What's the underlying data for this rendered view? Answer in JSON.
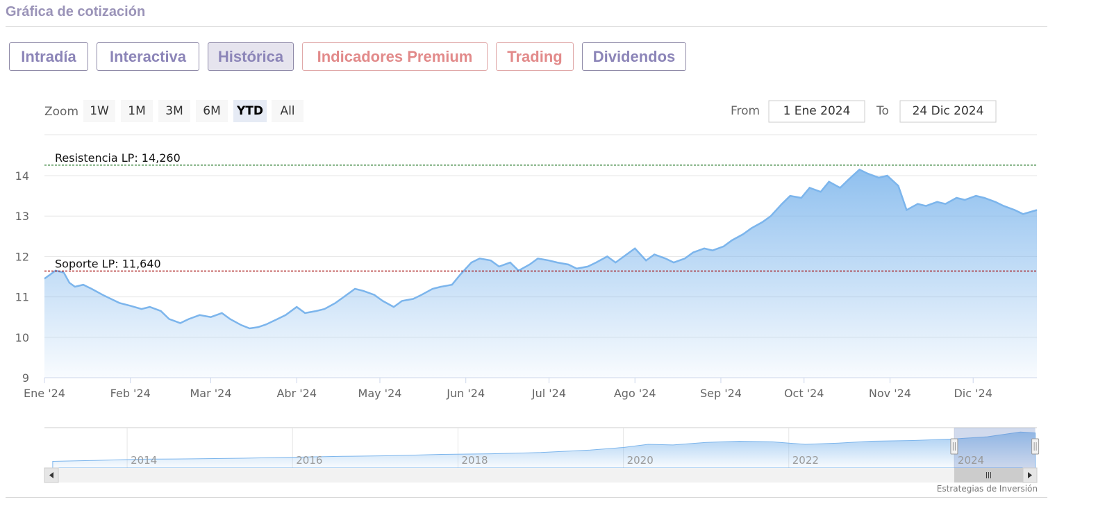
{
  "page_title": "Gráfica de cotización",
  "tabs": [
    {
      "label": "Intradía",
      "state": "normal"
    },
    {
      "label": "Interactiva",
      "state": "normal"
    },
    {
      "label": "Histórica",
      "state": "active"
    },
    {
      "label": "Indicadores Premium",
      "state": "premium"
    },
    {
      "label": "Trading",
      "state": "premium"
    },
    {
      "label": "Dividendos",
      "state": "normal"
    }
  ],
  "range_selector": {
    "zoom_label": "Zoom",
    "buttons": [
      "1W",
      "1M",
      "3M",
      "6M",
      "YTD",
      "All"
    ],
    "selected": "YTD",
    "from_label": "From",
    "from_value": "1 Ene 2024",
    "to_label": "To",
    "to_value": "24 Dic 2024"
  },
  "credits": "Estrategias de Inversión",
  "colors": {
    "line": "#7cb5ec",
    "area_top": "#7cb5ec",
    "resistance": "#2e7d32",
    "support": "#a00000",
    "tab_text": "#8c85b8",
    "premium_text": "#e28a8a"
  },
  "chart_data": {
    "type": "area",
    "title": "",
    "xlabel": "",
    "ylabel": "",
    "ylim": [
      9,
      14.5
    ],
    "y_ticks": [
      9,
      10,
      11,
      12,
      13,
      14
    ],
    "x_tick_labels": [
      "Ene '24",
      "Feb '24",
      "Mar '24",
      "Abr '24",
      "May '24",
      "Jun '24",
      "Jul '24",
      "Ago '24",
      "Sep '24",
      "Oct '24",
      "Nov '24",
      "Dic '24"
    ],
    "x_range": [
      "2024-01-01",
      "2024-12-24"
    ],
    "series": [
      {
        "points": [
          [
            "2024-01-01",
            11.45
          ],
          [
            "2024-01-03",
            11.55
          ],
          [
            "2024-01-05",
            11.65
          ],
          [
            "2024-01-08",
            11.6
          ],
          [
            "2024-01-10",
            11.35
          ],
          [
            "2024-01-12",
            11.25
          ],
          [
            "2024-01-15",
            11.3
          ],
          [
            "2024-01-18",
            11.2
          ],
          [
            "2024-01-22",
            11.05
          ],
          [
            "2024-01-25",
            10.95
          ],
          [
            "2024-01-28",
            10.85
          ],
          [
            "2024-02-01",
            10.78
          ],
          [
            "2024-02-05",
            10.7
          ],
          [
            "2024-02-08",
            10.75
          ],
          [
            "2024-02-12",
            10.65
          ],
          [
            "2024-02-15",
            10.45
          ],
          [
            "2024-02-19",
            10.35
          ],
          [
            "2024-02-22",
            10.45
          ],
          [
            "2024-02-26",
            10.55
          ],
          [
            "2024-03-01",
            10.5
          ],
          [
            "2024-03-05",
            10.6
          ],
          [
            "2024-03-08",
            10.45
          ],
          [
            "2024-03-12",
            10.3
          ],
          [
            "2024-03-15",
            10.22
          ],
          [
            "2024-03-18",
            10.25
          ],
          [
            "2024-03-21",
            10.32
          ],
          [
            "2024-03-25",
            10.45
          ],
          [
            "2024-03-28",
            10.55
          ],
          [
            "2024-04-01",
            10.75
          ],
          [
            "2024-04-04",
            10.6
          ],
          [
            "2024-04-08",
            10.65
          ],
          [
            "2024-04-11",
            10.7
          ],
          [
            "2024-04-15",
            10.85
          ],
          [
            "2024-04-18",
            11.0
          ],
          [
            "2024-04-22",
            11.2
          ],
          [
            "2024-04-25",
            11.15
          ],
          [
            "2024-04-29",
            11.05
          ],
          [
            "2024-05-02",
            10.9
          ],
          [
            "2024-05-06",
            10.75
          ],
          [
            "2024-05-09",
            10.9
          ],
          [
            "2024-05-13",
            10.95
          ],
          [
            "2024-05-16",
            11.05
          ],
          [
            "2024-05-20",
            11.2
          ],
          [
            "2024-05-23",
            11.25
          ],
          [
            "2024-05-27",
            11.3
          ],
          [
            "2024-05-30",
            11.55
          ],
          [
            "2024-06-03",
            11.85
          ],
          [
            "2024-06-06",
            11.95
          ],
          [
            "2024-06-10",
            11.9
          ],
          [
            "2024-06-13",
            11.75
          ],
          [
            "2024-06-17",
            11.85
          ],
          [
            "2024-06-20",
            11.65
          ],
          [
            "2024-06-24",
            11.8
          ],
          [
            "2024-06-27",
            11.95
          ],
          [
            "2024-07-01",
            11.9
          ],
          [
            "2024-07-04",
            11.85
          ],
          [
            "2024-07-08",
            11.8
          ],
          [
            "2024-07-11",
            11.7
          ],
          [
            "2024-07-15",
            11.75
          ],
          [
            "2024-07-18",
            11.85
          ],
          [
            "2024-07-22",
            12.0
          ],
          [
            "2024-07-25",
            11.85
          ],
          [
            "2024-07-29",
            12.05
          ],
          [
            "2024-08-01",
            12.2
          ],
          [
            "2024-08-05",
            11.9
          ],
          [
            "2024-08-08",
            12.05
          ],
          [
            "2024-08-12",
            11.95
          ],
          [
            "2024-08-15",
            11.85
          ],
          [
            "2024-08-19",
            11.95
          ],
          [
            "2024-08-22",
            12.1
          ],
          [
            "2024-08-26",
            12.2
          ],
          [
            "2024-08-29",
            12.15
          ],
          [
            "2024-09-02",
            12.25
          ],
          [
            "2024-09-05",
            12.4
          ],
          [
            "2024-09-09",
            12.55
          ],
          [
            "2024-09-12",
            12.7
          ],
          [
            "2024-09-16",
            12.85
          ],
          [
            "2024-09-19",
            13.0
          ],
          [
            "2024-09-23",
            13.3
          ],
          [
            "2024-09-26",
            13.5
          ],
          [
            "2024-09-30",
            13.45
          ],
          [
            "2024-10-03",
            13.7
          ],
          [
            "2024-10-07",
            13.6
          ],
          [
            "2024-10-10",
            13.85
          ],
          [
            "2024-10-14",
            13.7
          ],
          [
            "2024-10-17",
            13.9
          ],
          [
            "2024-10-21",
            14.15
          ],
          [
            "2024-10-24",
            14.05
          ],
          [
            "2024-10-28",
            13.95
          ],
          [
            "2024-10-31",
            14.0
          ],
          [
            "2024-11-04",
            13.75
          ],
          [
            "2024-11-07",
            13.15
          ],
          [
            "2024-11-11",
            13.3
          ],
          [
            "2024-11-14",
            13.25
          ],
          [
            "2024-11-18",
            13.35
          ],
          [
            "2024-11-21",
            13.3
          ],
          [
            "2024-11-25",
            13.45
          ],
          [
            "2024-11-28",
            13.4
          ],
          [
            "2024-12-02",
            13.5
          ],
          [
            "2024-12-05",
            13.45
          ],
          [
            "2024-12-09",
            13.35
          ],
          [
            "2024-12-12",
            13.25
          ],
          [
            "2024-12-16",
            13.15
          ],
          [
            "2024-12-19",
            13.05
          ],
          [
            "2024-12-24",
            13.15
          ]
        ]
      }
    ],
    "annotations": [
      {
        "label": "Resistencia LP: 14,260",
        "value": 14.26,
        "style": "dashed",
        "color": "#2e7d32"
      },
      {
        "label": "Soporte LP: 11,640",
        "value": 11.64,
        "style": "dashed",
        "color": "#a00000"
      }
    ],
    "navigator": {
      "x_tick_labels": [
        "2014",
        "2016",
        "2018",
        "2020",
        "2022",
        "2024"
      ],
      "points": [
        [
          2013.1,
          4.2
        ],
        [
          2013.6,
          4.5
        ],
        [
          2014.2,
          4.9
        ],
        [
          2014.8,
          5.0
        ],
        [
          2015.4,
          5.2
        ],
        [
          2016.0,
          5.5
        ],
        [
          2016.6,
          5.8
        ],
        [
          2017.2,
          6.0
        ],
        [
          2017.8,
          6.4
        ],
        [
          2018.4,
          6.6
        ],
        [
          2019.0,
          7.0
        ],
        [
          2019.6,
          7.8
        ],
        [
          2020.0,
          8.6
        ],
        [
          2020.3,
          9.6
        ],
        [
          2020.6,
          9.4
        ],
        [
          2021.0,
          10.2
        ],
        [
          2021.4,
          10.6
        ],
        [
          2021.8,
          10.4
        ],
        [
          2022.2,
          9.6
        ],
        [
          2022.6,
          10.0
        ],
        [
          2023.0,
          10.6
        ],
        [
          2023.5,
          10.8
        ],
        [
          2024.0,
          11.3
        ],
        [
          2024.4,
          12.0
        ],
        [
          2024.8,
          13.5
        ],
        [
          2024.98,
          13.2
        ]
      ],
      "range": [
        2013.0,
        2025.0
      ],
      "selected_range": [
        2024.0,
        2024.98
      ]
    }
  }
}
